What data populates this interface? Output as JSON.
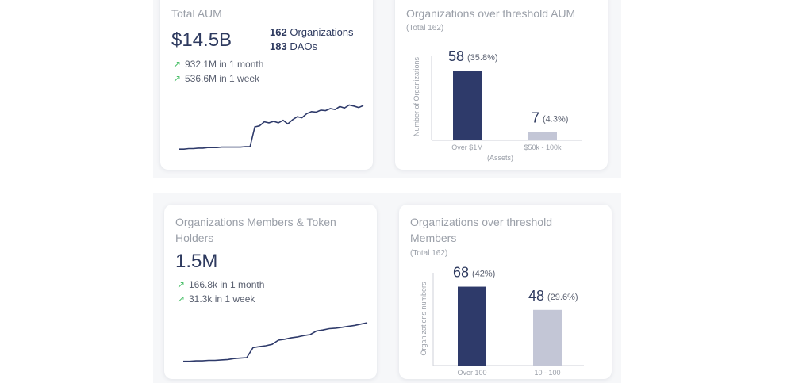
{
  "colors": {
    "navy": "#2e3a6a",
    "grey_bar": "#c3c6d6",
    "trend_up": "#4cc06a",
    "muted": "#9a9fa8"
  },
  "aum_card": {
    "title": "Total AUM",
    "value": "$14.5B",
    "orgs_count": "162",
    "orgs_label": "Organizations",
    "daos_count": "183",
    "daos_label": "DAOs",
    "trend_month": "932.1M in 1 month",
    "trend_week": "536.6M in 1 week",
    "sparkline": [
      0.06,
      0.06,
      0.07,
      0.07,
      0.08,
      0.08,
      0.09,
      0.09,
      0.09,
      0.1,
      0.1,
      0.1,
      0.1,
      0.1,
      0.11,
      0.11,
      0.5,
      0.52,
      0.6,
      0.58,
      0.61,
      0.58,
      0.63,
      0.56,
      0.64,
      0.7,
      0.68,
      0.76,
      0.8,
      0.79,
      0.83,
      0.82,
      0.86,
      0.84,
      0.9,
      0.87,
      0.93,
      0.91,
      0.88,
      0.92
    ]
  },
  "aum_threshold_card": {
    "title": "Organizations over threshold AUM",
    "subtitle": "(Total 162)",
    "chart_data": {
      "type": "bar",
      "ylabel": "Number of Organizations",
      "xlabel": "(Assets)",
      "categories": [
        "Over $1M",
        "$50k - 100k"
      ],
      "values": [
        58,
        7
      ],
      "value_labels": [
        "58",
        "7"
      ],
      "pct_labels": [
        "(35.8%)",
        "(4.3%)"
      ],
      "ylim": [
        0,
        70
      ]
    }
  },
  "members_card": {
    "title": "Organizations Members & Token Holders",
    "value": "1.5M",
    "trend_month": "166.8k in 1 month",
    "trend_week": "31.3k in 1 week",
    "sparkline": [
      0.04,
      0.04,
      0.05,
      0.05,
      0.06,
      0.06,
      0.07,
      0.08,
      0.1,
      0.11,
      0.12,
      0.34,
      0.36,
      0.38,
      0.41,
      0.5,
      0.52,
      0.55,
      0.57,
      0.6,
      0.62,
      0.7,
      0.72,
      0.75,
      0.76,
      0.78,
      0.8,
      0.82,
      0.85,
      0.88
    ]
  },
  "members_threshold_card": {
    "title": "Organizations over threshold Members",
    "subtitle": "(Total 162)",
    "chart_data": {
      "type": "bar",
      "ylabel": "Organizations numbers",
      "categories": [
        "Over 100",
        "10 - 100"
      ],
      "values": [
        68,
        48
      ],
      "value_labels": [
        "68",
        "48"
      ],
      "pct_labels": [
        "(42%)",
        "(29.6%)"
      ],
      "ylim": [
        0,
        80
      ]
    }
  }
}
